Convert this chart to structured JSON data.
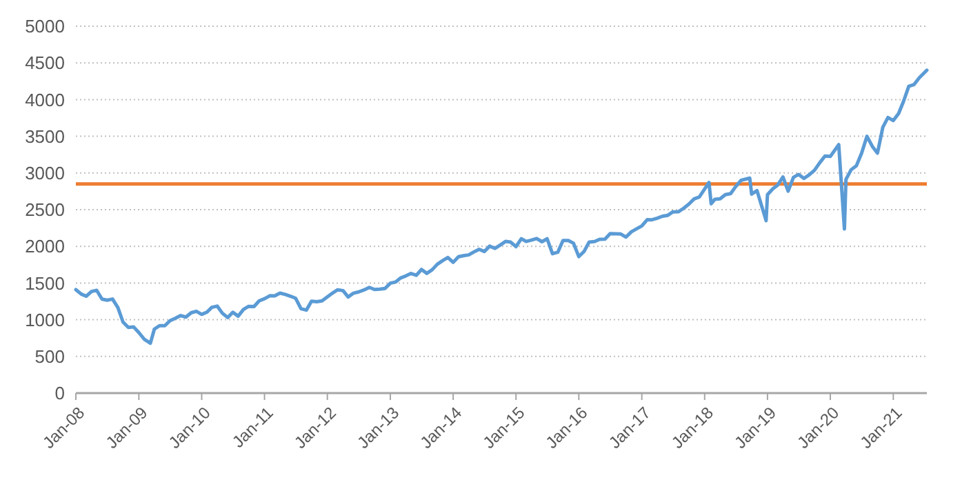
{
  "chart_data": {
    "type": "line",
    "xlim": [
      "2008-01-01",
      "2021-07-15"
    ],
    "ylim": [
      0,
      5000
    ],
    "yticks": [
      0,
      500,
      1000,
      1500,
      2000,
      2500,
      3000,
      3500,
      4000,
      4500,
      5000
    ],
    "xticks": [
      {
        "value": "2008-01-01",
        "label": "Jan-08"
      },
      {
        "value": "2009-01-01",
        "label": "Jan-09"
      },
      {
        "value": "2010-01-01",
        "label": "Jan-10"
      },
      {
        "value": "2011-01-01",
        "label": "Jan-11"
      },
      {
        "value": "2012-01-01",
        "label": "Jan-12"
      },
      {
        "value": "2013-01-01",
        "label": "Jan-13"
      },
      {
        "value": "2014-01-01",
        "label": "Jan-14"
      },
      {
        "value": "2015-01-01",
        "label": "Jan-15"
      },
      {
        "value": "2016-01-01",
        "label": "Jan-16"
      },
      {
        "value": "2017-01-01",
        "label": "Jan-17"
      },
      {
        "value": "2018-01-01",
        "label": "Jan-18"
      },
      {
        "value": "2019-01-01",
        "label": "Jan-19"
      },
      {
        "value": "2020-01-01",
        "label": "Jan-20"
      },
      {
        "value": "2021-01-01",
        "label": "Jan-21"
      }
    ],
    "grid": "y",
    "marker": "none",
    "line_style": "solid",
    "x": [
      "2008-01-01",
      "2008-02-01",
      "2008-03-01",
      "2008-04-01",
      "2008-05-01",
      "2008-06-01",
      "2008-07-01",
      "2008-08-01",
      "2008-09-01",
      "2008-10-01",
      "2008-11-01",
      "2008-12-01",
      "2009-01-01",
      "2009-02-01",
      "2009-03-09",
      "2009-04-01",
      "2009-05-01",
      "2009-06-01",
      "2009-07-01",
      "2009-08-01",
      "2009-09-01",
      "2009-10-01",
      "2009-11-01",
      "2009-12-01",
      "2010-01-01",
      "2010-02-01",
      "2010-03-01",
      "2010-04-01",
      "2010-05-01",
      "2010-06-01",
      "2010-07-01",
      "2010-08-01",
      "2010-09-01",
      "2010-10-01",
      "2010-11-01",
      "2010-12-01",
      "2011-01-01",
      "2011-02-01",
      "2011-03-01",
      "2011-04-01",
      "2011-05-01",
      "2011-06-01",
      "2011-07-01",
      "2011-08-01",
      "2011-09-01",
      "2011-10-01",
      "2011-11-01",
      "2011-12-01",
      "2012-01-01",
      "2012-02-01",
      "2012-03-01",
      "2012-04-01",
      "2012-05-01",
      "2012-06-01",
      "2012-07-01",
      "2012-08-01",
      "2012-09-01",
      "2012-10-01",
      "2012-11-01",
      "2012-12-01",
      "2013-01-01",
      "2013-02-01",
      "2013-03-01",
      "2013-04-01",
      "2013-05-01",
      "2013-06-01",
      "2013-07-01",
      "2013-08-01",
      "2013-09-01",
      "2013-10-01",
      "2013-11-01",
      "2013-12-01",
      "2014-01-01",
      "2014-02-01",
      "2014-03-01",
      "2014-04-01",
      "2014-05-01",
      "2014-06-01",
      "2014-07-01",
      "2014-08-01",
      "2014-09-01",
      "2014-10-01",
      "2014-11-01",
      "2014-12-01",
      "2015-01-01",
      "2015-02-01",
      "2015-03-01",
      "2015-04-01",
      "2015-05-01",
      "2015-06-01",
      "2015-07-01",
      "2015-08-01",
      "2015-09-01",
      "2015-10-01",
      "2015-11-01",
      "2015-12-01",
      "2016-01-01",
      "2016-02-01",
      "2016-03-01",
      "2016-04-01",
      "2016-05-01",
      "2016-06-01",
      "2016-07-01",
      "2016-08-01",
      "2016-09-01",
      "2016-10-01",
      "2016-11-01",
      "2016-12-01",
      "2017-01-01",
      "2017-02-01",
      "2017-03-01",
      "2017-04-01",
      "2017-05-01",
      "2017-06-01",
      "2017-07-01",
      "2017-08-01",
      "2017-09-01",
      "2017-10-01",
      "2017-11-01",
      "2017-12-01",
      "2018-01-26",
      "2018-02-08",
      "2018-03-01",
      "2018-04-01",
      "2018-05-01",
      "2018-06-01",
      "2018-07-01",
      "2018-08-01",
      "2018-09-20",
      "2018-10-01",
      "2018-11-01",
      "2018-12-24",
      "2019-01-01",
      "2019-02-01",
      "2019-03-01",
      "2019-04-01",
      "2019-05-01",
      "2019-06-01",
      "2019-07-01",
      "2019-08-01",
      "2019-09-01",
      "2019-10-01",
      "2019-11-01",
      "2019-12-01",
      "2020-01-01",
      "2020-02-19",
      "2020-03-23",
      "2020-04-01",
      "2020-05-01",
      "2020-06-01",
      "2020-07-01",
      "2020-08-01",
      "2020-09-01",
      "2020-10-01",
      "2020-11-01",
      "2020-12-01",
      "2021-01-01",
      "2021-02-01",
      "2021-03-01",
      "2021-04-01",
      "2021-05-01",
      "2021-06-01",
      "2021-07-15"
    ],
    "series": [
      {
        "color": "#5b9bd5",
        "values": [
          1410,
          1350,
          1320,
          1385,
          1400,
          1280,
          1267,
          1282,
          1166,
          968,
          896,
          903,
          825,
          735,
          680,
          872,
          919,
          919,
          987,
          1020,
          1057,
          1036,
          1095,
          1115,
          1073,
          1104,
          1169,
          1186,
          1089,
          1030,
          1101,
          1049,
          1141,
          1183,
          1180,
          1257,
          1286,
          1327,
          1325,
          1363,
          1345,
          1320,
          1292,
          1150,
          1131,
          1253,
          1246,
          1257,
          1312,
          1365,
          1408,
          1397,
          1310,
          1362,
          1379,
          1406,
          1440,
          1412,
          1416,
          1426,
          1498,
          1514,
          1569,
          1597,
          1630,
          1606,
          1685,
          1632,
          1681,
          1756,
          1805,
          1848,
          1782,
          1859,
          1872,
          1883,
          1923,
          1960,
          1930,
          2003,
          1972,
          2018,
          2067,
          2058,
          1995,
          2104,
          2067,
          2085,
          2107,
          2063,
          2103,
          1900,
          1920,
          2079,
          2080,
          2043,
          1860,
          1932,
          2059,
          2065,
          2096,
          2098,
          2173,
          2170,
          2168,
          2126,
          2198,
          2238,
          2278,
          2363,
          2362,
          2384,
          2411,
          2423,
          2470,
          2471,
          2519,
          2575,
          2647,
          2673,
          2870,
          2580,
          2640,
          2648,
          2705,
          2718,
          2816,
          2901,
          2930,
          2711,
          2760,
          2351,
          2704,
          2784,
          2834,
          2945,
          2752,
          2941,
          2980,
          2926,
          2976,
          3037,
          3140,
          3230,
          3225,
          3386,
          2237,
          2912,
          3044,
          3100,
          3271,
          3500,
          3363,
          3270,
          3622,
          3756,
          3714,
          3811,
          3973,
          4181,
          4204,
          4298,
          4400
        ]
      }
    ],
    "ref_lines": [
      {
        "axis": "y",
        "value": 2850,
        "color": "#ed7d31"
      }
    ]
  }
}
